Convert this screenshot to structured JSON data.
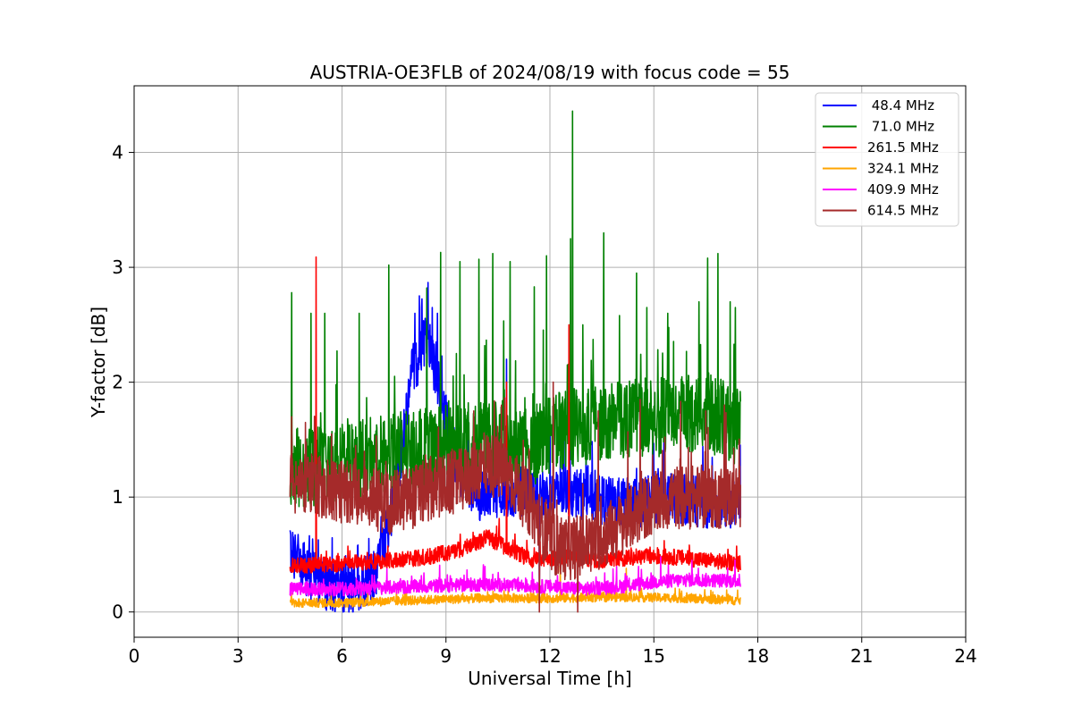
{
  "chart_data": {
    "type": "line",
    "title": "AUSTRIA-OE3FLB of 2024/08/19 with focus code = 55",
    "xlabel": "Universal Time [h]",
    "ylabel": "Y-factor [dB]",
    "xlim": [
      0,
      24
    ],
    "ylim": [
      -0.22,
      4.58
    ],
    "xticks": [
      0,
      3,
      6,
      9,
      12,
      15,
      18,
      21,
      24
    ],
    "yticks": [
      0,
      1,
      2,
      3,
      4
    ],
    "grid": true,
    "legend_position": "top-right",
    "x_range": [
      4.5,
      17.5
    ],
    "series": [
      {
        "name": " 48.4 MHz",
        "color": "#0000ff",
        "base": [
          [
            4.5,
            0.55
          ],
          [
            5.0,
            0.35
          ],
          [
            5.6,
            0.22
          ],
          [
            6.4,
            0.2
          ],
          [
            7.0,
            0.35
          ],
          [
            7.6,
            1.1
          ],
          [
            8.0,
            2.1
          ],
          [
            8.5,
            2.35
          ],
          [
            8.9,
            1.8
          ],
          [
            9.4,
            1.2
          ],
          [
            10.0,
            1.0
          ],
          [
            10.8,
            1.05
          ],
          [
            11.5,
            1.05
          ],
          [
            12.0,
            1.0
          ],
          [
            12.6,
            1.05
          ],
          [
            13.2,
            1.0
          ],
          [
            13.8,
            0.95
          ],
          [
            14.5,
            0.95
          ],
          [
            15.5,
            1.0
          ],
          [
            16.5,
            0.95
          ],
          [
            17.5,
            0.95
          ]
        ],
        "noise": 0.22,
        "spikes": [
          [
            8.1,
            2.6
          ],
          [
            8.3,
            2.65
          ],
          [
            8.6,
            2.65
          ],
          [
            8.75,
            2.6
          ],
          [
            10.75,
            2.2
          ],
          [
            12.3,
            1.35
          ],
          [
            11.7,
            0.1
          ],
          [
            6.2,
            0.0
          ]
        ]
      },
      {
        "name": " 71.0 MHz",
        "color": "#008000",
        "base": [
          [
            4.5,
            1.25
          ],
          [
            6.0,
            1.3
          ],
          [
            7.5,
            1.4
          ],
          [
            9.0,
            1.45
          ],
          [
            10.5,
            1.5
          ],
          [
            11.5,
            1.45
          ],
          [
            12.5,
            1.6
          ],
          [
            13.5,
            1.65
          ],
          [
            14.5,
            1.7
          ],
          [
            15.5,
            1.7
          ],
          [
            16.5,
            1.75
          ],
          [
            17.5,
            1.6
          ]
        ],
        "noise": 0.35,
        "spikes": [
          [
            4.55,
            2.78
          ],
          [
            5.1,
            2.6
          ],
          [
            7.35,
            3.02
          ],
          [
            8.45,
            2.82
          ],
          [
            8.85,
            3.13
          ],
          [
            9.4,
            3.05
          ],
          [
            9.95,
            3.07
          ],
          [
            10.35,
            3.12
          ],
          [
            10.85,
            3.05
          ],
          [
            11.55,
            2.83
          ],
          [
            11.9,
            3.1
          ],
          [
            12.65,
            4.36
          ],
          [
            12.6,
            3.25
          ],
          [
            13.55,
            3.3
          ],
          [
            14.5,
            2.95
          ],
          [
            14.8,
            2.65
          ],
          [
            15.4,
            2.6
          ],
          [
            16.3,
            2.7
          ],
          [
            16.55,
            3.08
          ],
          [
            16.85,
            3.12
          ],
          [
            17.2,
            2.7
          ],
          [
            17.35,
            2.65
          ],
          [
            5.5,
            2.6
          ],
          [
            6.5,
            2.6
          ]
        ]
      },
      {
        "name": "261.5 MHz",
        "color": "#ff0000",
        "base": [
          [
            4.5,
            0.4
          ],
          [
            6.0,
            0.42
          ],
          [
            7.5,
            0.45
          ],
          [
            8.5,
            0.48
          ],
          [
            9.5,
            0.55
          ],
          [
            10.2,
            0.65
          ],
          [
            10.8,
            0.55
          ],
          [
            11.5,
            0.45
          ],
          [
            12.5,
            0.48
          ],
          [
            13.5,
            0.45
          ],
          [
            14.5,
            0.48
          ],
          [
            15.5,
            0.48
          ],
          [
            16.5,
            0.45
          ],
          [
            17.5,
            0.42
          ]
        ],
        "noise": 0.07,
        "spikes": [
          [
            5.25,
            3.09
          ],
          [
            12.55,
            2.5
          ],
          [
            10.75,
            2.0
          ]
        ]
      },
      {
        "name": "324.1 MHz",
        "color": "#ffa500",
        "base": [
          [
            4.5,
            0.08
          ],
          [
            6.0,
            0.08
          ],
          [
            8.0,
            0.1
          ],
          [
            10.0,
            0.12
          ],
          [
            12.0,
            0.12
          ],
          [
            14.0,
            0.13
          ],
          [
            16.0,
            0.12
          ],
          [
            17.5,
            0.1
          ]
        ],
        "noise": 0.04,
        "spikes": [
          [
            12.3,
            0.4
          ],
          [
            14.2,
            0.38
          ]
        ]
      },
      {
        "name": "409.9 MHz",
        "color": "#ff00ff",
        "base": [
          [
            4.5,
            0.2
          ],
          [
            6.0,
            0.2
          ],
          [
            8.0,
            0.22
          ],
          [
            10.0,
            0.24
          ],
          [
            12.0,
            0.22
          ],
          [
            13.0,
            0.2
          ],
          [
            14.0,
            0.22
          ],
          [
            15.0,
            0.26
          ],
          [
            16.0,
            0.28
          ],
          [
            17.5,
            0.27
          ]
        ],
        "noise": 0.06,
        "spikes": [
          [
            15.2,
            0.48
          ],
          [
            16.1,
            0.45
          ]
        ]
      },
      {
        "name": "614.5 MHz",
        "color": "#a52a2a",
        "base": [
          [
            4.5,
            1.1
          ],
          [
            5.5,
            1.1
          ],
          [
            6.5,
            1.0
          ],
          [
            7.5,
            0.95
          ],
          [
            8.5,
            1.05
          ],
          [
            9.5,
            1.15
          ],
          [
            10.2,
            1.3
          ],
          [
            10.8,
            1.2
          ],
          [
            11.5,
            0.9
          ],
          [
            12.0,
            0.6
          ],
          [
            12.5,
            0.55
          ],
          [
            13.2,
            0.6
          ],
          [
            14.0,
            0.75
          ],
          [
            14.7,
            0.9
          ],
          [
            15.5,
            1.0
          ],
          [
            16.5,
            1.0
          ],
          [
            17.5,
            1.0
          ]
        ],
        "noise": 0.28,
        "spikes": [
          [
            4.55,
            1.7
          ],
          [
            5.7,
            1.55
          ],
          [
            9.8,
            1.75
          ],
          [
            10.6,
            1.8
          ],
          [
            12.1,
            2.0
          ],
          [
            13.4,
            1.75
          ],
          [
            14.6,
            1.85
          ],
          [
            16.5,
            1.75
          ],
          [
            11.7,
            0.0
          ],
          [
            12.8,
            0.0
          ]
        ]
      }
    ]
  }
}
